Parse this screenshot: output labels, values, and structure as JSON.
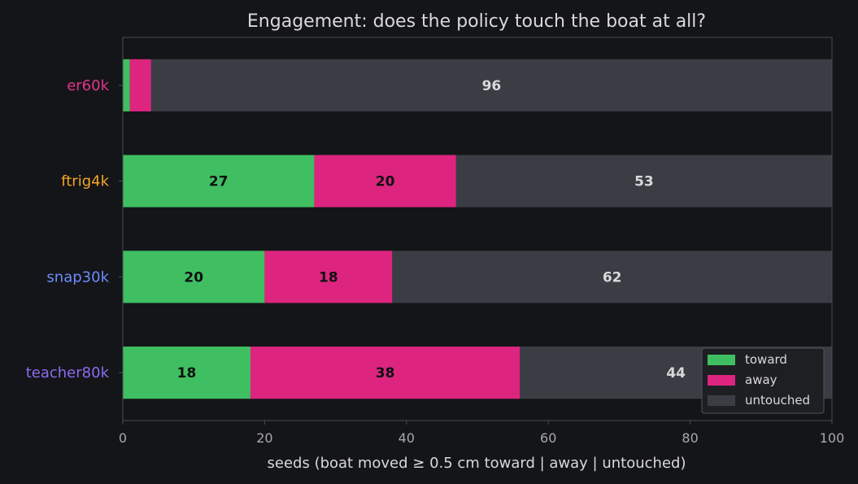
{
  "colors": {
    "background": "#141518",
    "plot_background": "#141518",
    "axes_edge": "#4a4c52",
    "text": "#d9d9d9",
    "tick_text": "#a8a8a8",
    "legend_bg": "#1e1f23",
    "legend_edge": "#505258"
  },
  "chart_data": {
    "type": "bar",
    "orientation": "horizontal",
    "stacked": true,
    "title": "Engagement: does the policy touch the boat at all?",
    "xlabel": "seeds (boat moved ≥ 0.5 cm toward | away | untouched)",
    "ylabel": "",
    "xlim": [
      0,
      100
    ],
    "xticks": [
      "0",
      "20",
      "40",
      "60",
      "80",
      "100"
    ],
    "grid": false,
    "legend_position": "bottom-right",
    "categories": [
      {
        "label": "er60k",
        "color": "#e0348a"
      },
      {
        "label": "ftrig4k",
        "color": "#f5a623"
      },
      {
        "label": "snap30k",
        "color": "#6b8cff"
      },
      {
        "label": "teacher80k",
        "color": "#8a6cf0"
      }
    ],
    "series": [
      {
        "name": "toward",
        "color": "#3fbf62",
        "label_color": "#111111",
        "values": [
          1,
          27,
          20,
          18
        ]
      },
      {
        "name": "away",
        "color": "#dd2580",
        "label_color": "#111111",
        "values": [
          3,
          20,
          18,
          38
        ]
      },
      {
        "name": "untouched",
        "color": "#3a3d44",
        "label_color": "#d9d9d9",
        "values": [
          96,
          53,
          62,
          44
        ]
      }
    ]
  }
}
